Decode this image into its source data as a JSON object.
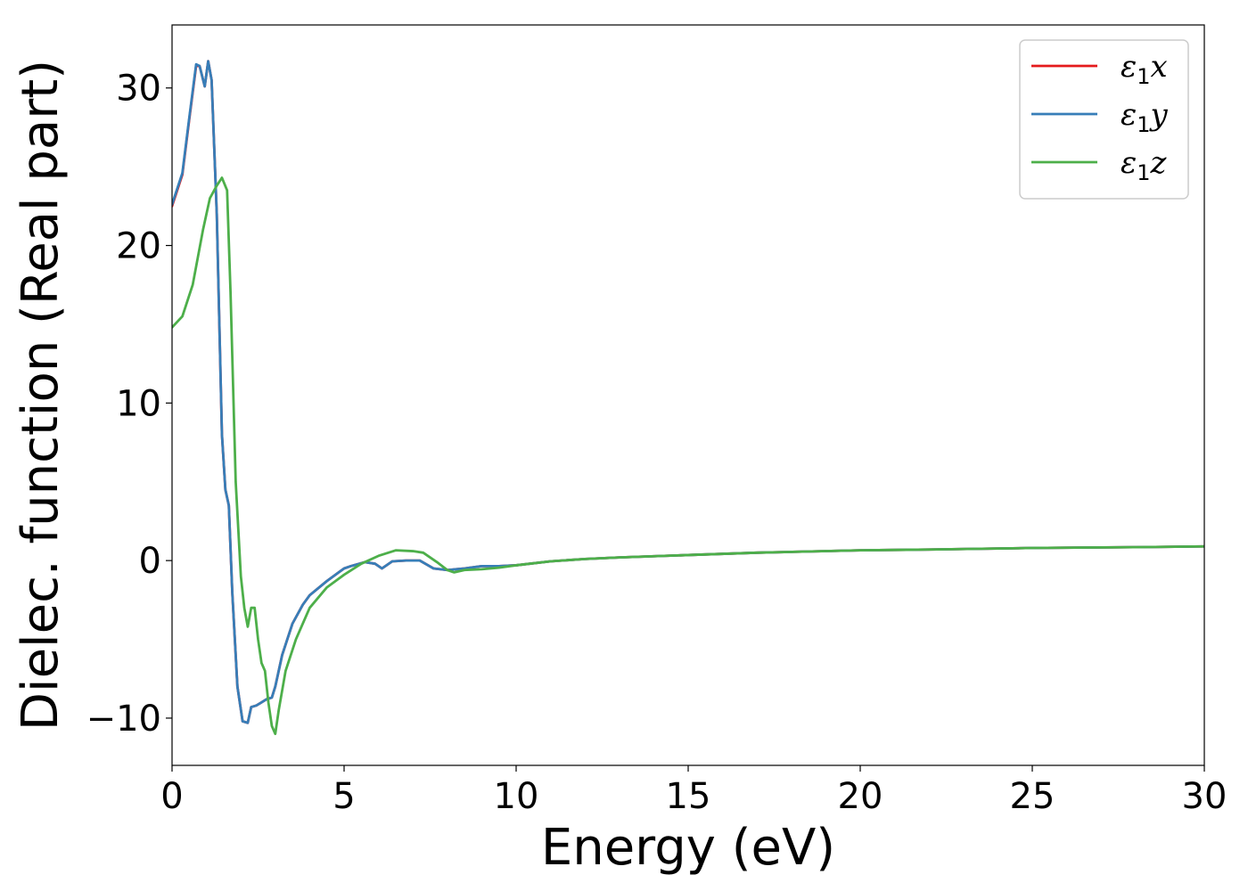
{
  "chart_data": {
    "type": "line",
    "title": "",
    "xlabel": "Energy (eV)",
    "ylabel": "Dielec. function (Real part)",
    "xlim": [
      0,
      30
    ],
    "ylim": [
      -13,
      34
    ],
    "xticks": [
      0,
      5,
      10,
      15,
      20,
      25,
      30
    ],
    "yticks": [
      -10,
      0,
      10,
      20,
      30
    ],
    "xtick_labels": [
      "0",
      "5",
      "10",
      "15",
      "20",
      "25",
      "30"
    ],
    "ytick_labels": [
      "−10",
      "0",
      "10",
      "20",
      "30"
    ],
    "grid": false,
    "legend": {
      "position": "top-right"
    },
    "series": [
      {
        "name_symbol": "ε",
        "name_sub": "1",
        "name_var": "x",
        "name": "ε1x",
        "color": "#e41a1c",
        "x": [
          0,
          0.3,
          0.5,
          0.7,
          0.8,
          0.95,
          1.05,
          1.15,
          1.3,
          1.45,
          1.55,
          1.65,
          1.75,
          1.9,
          2.05,
          2.2,
          2.3,
          2.45,
          2.6,
          2.75,
          2.9,
          3.0,
          3.2,
          3.5,
          3.8,
          4.0,
          4.5,
          5.0,
          5.2,
          5.6,
          5.9,
          6.1,
          6.4,
          6.8,
          7.2,
          7.6,
          8.0,
          8.5,
          9.0,
          9.5,
          10,
          11,
          12,
          13,
          15,
          17,
          20,
          22,
          25,
          28,
          30
        ],
        "y": [
          22.5,
          24.5,
          28.0,
          31.4,
          31.4,
          30.1,
          31.7,
          30.5,
          22.0,
          8.0,
          4.5,
          3.5,
          -2.0,
          -8.0,
          -10.2,
          -10.3,
          -9.3,
          -9.2,
          -9.0,
          -8.8,
          -8.7,
          -8.0,
          -6.0,
          -4.0,
          -2.8,
          -2.2,
          -1.3,
          -0.5,
          -0.35,
          -0.1,
          -0.2,
          -0.5,
          -0.05,
          0.0,
          0.0,
          -0.5,
          -0.6,
          -0.5,
          -0.35,
          -0.35,
          -0.3,
          -0.05,
          0.1,
          0.2,
          0.35,
          0.5,
          0.65,
          0.7,
          0.8,
          0.85,
          0.9
        ]
      },
      {
        "name_symbol": "ε",
        "name_sub": "1",
        "name_var": "y",
        "name": "ε1y",
        "color": "#377eb8",
        "x": [
          0,
          0.3,
          0.5,
          0.7,
          0.8,
          0.95,
          1.05,
          1.15,
          1.3,
          1.45,
          1.55,
          1.65,
          1.75,
          1.9,
          2.05,
          2.2,
          2.3,
          2.45,
          2.6,
          2.75,
          2.9,
          3.0,
          3.2,
          3.5,
          3.8,
          4.0,
          4.5,
          5.0,
          5.2,
          5.6,
          5.9,
          6.1,
          6.4,
          6.8,
          7.2,
          7.6,
          8.0,
          8.5,
          9.0,
          9.5,
          10,
          11,
          12,
          13,
          15,
          17,
          20,
          22,
          25,
          28,
          30
        ],
        "y": [
          22.6,
          24.6,
          28.1,
          31.5,
          31.4,
          30.1,
          31.7,
          30.5,
          22.0,
          8.0,
          4.5,
          3.5,
          -2.0,
          -8.0,
          -10.2,
          -10.3,
          -9.3,
          -9.2,
          -9.0,
          -8.8,
          -8.7,
          -8.0,
          -6.0,
          -4.0,
          -2.8,
          -2.2,
          -1.3,
          -0.5,
          -0.35,
          -0.1,
          -0.2,
          -0.5,
          -0.05,
          0.0,
          0.0,
          -0.5,
          -0.6,
          -0.5,
          -0.35,
          -0.35,
          -0.3,
          -0.05,
          0.1,
          0.2,
          0.35,
          0.5,
          0.65,
          0.7,
          0.8,
          0.85,
          0.9
        ]
      },
      {
        "name_symbol": "ε",
        "name_sub": "1",
        "name_var": "z",
        "name": "ε1z",
        "color": "#4daf4a",
        "x": [
          0,
          0.3,
          0.6,
          0.9,
          1.1,
          1.3,
          1.45,
          1.6,
          1.7,
          1.85,
          2.0,
          2.1,
          2.2,
          2.3,
          2.4,
          2.5,
          2.6,
          2.7,
          2.8,
          2.9,
          3.0,
          3.1,
          3.3,
          3.6,
          4.0,
          4.5,
          5.0,
          5.5,
          6.0,
          6.5,
          7.0,
          7.3,
          7.7,
          8.0,
          8.2,
          8.5,
          9.0,
          9.5,
          10,
          11,
          12,
          13,
          15,
          17,
          20,
          22,
          25,
          28,
          30
        ],
        "y": [
          14.8,
          15.5,
          17.5,
          21.0,
          23.0,
          23.8,
          24.3,
          23.5,
          17.0,
          5.0,
          -1.0,
          -3.0,
          -4.2,
          -3.0,
          -3.0,
          -5.0,
          -6.5,
          -7.0,
          -9.0,
          -10.5,
          -11.0,
          -9.5,
          -7.0,
          -5.0,
          -3.0,
          -1.7,
          -0.9,
          -0.2,
          0.3,
          0.65,
          0.6,
          0.5,
          -0.1,
          -0.6,
          -0.75,
          -0.6,
          -0.55,
          -0.45,
          -0.3,
          -0.05,
          0.1,
          0.2,
          0.35,
          0.5,
          0.65,
          0.7,
          0.8,
          0.85,
          0.9
        ]
      }
    ]
  }
}
